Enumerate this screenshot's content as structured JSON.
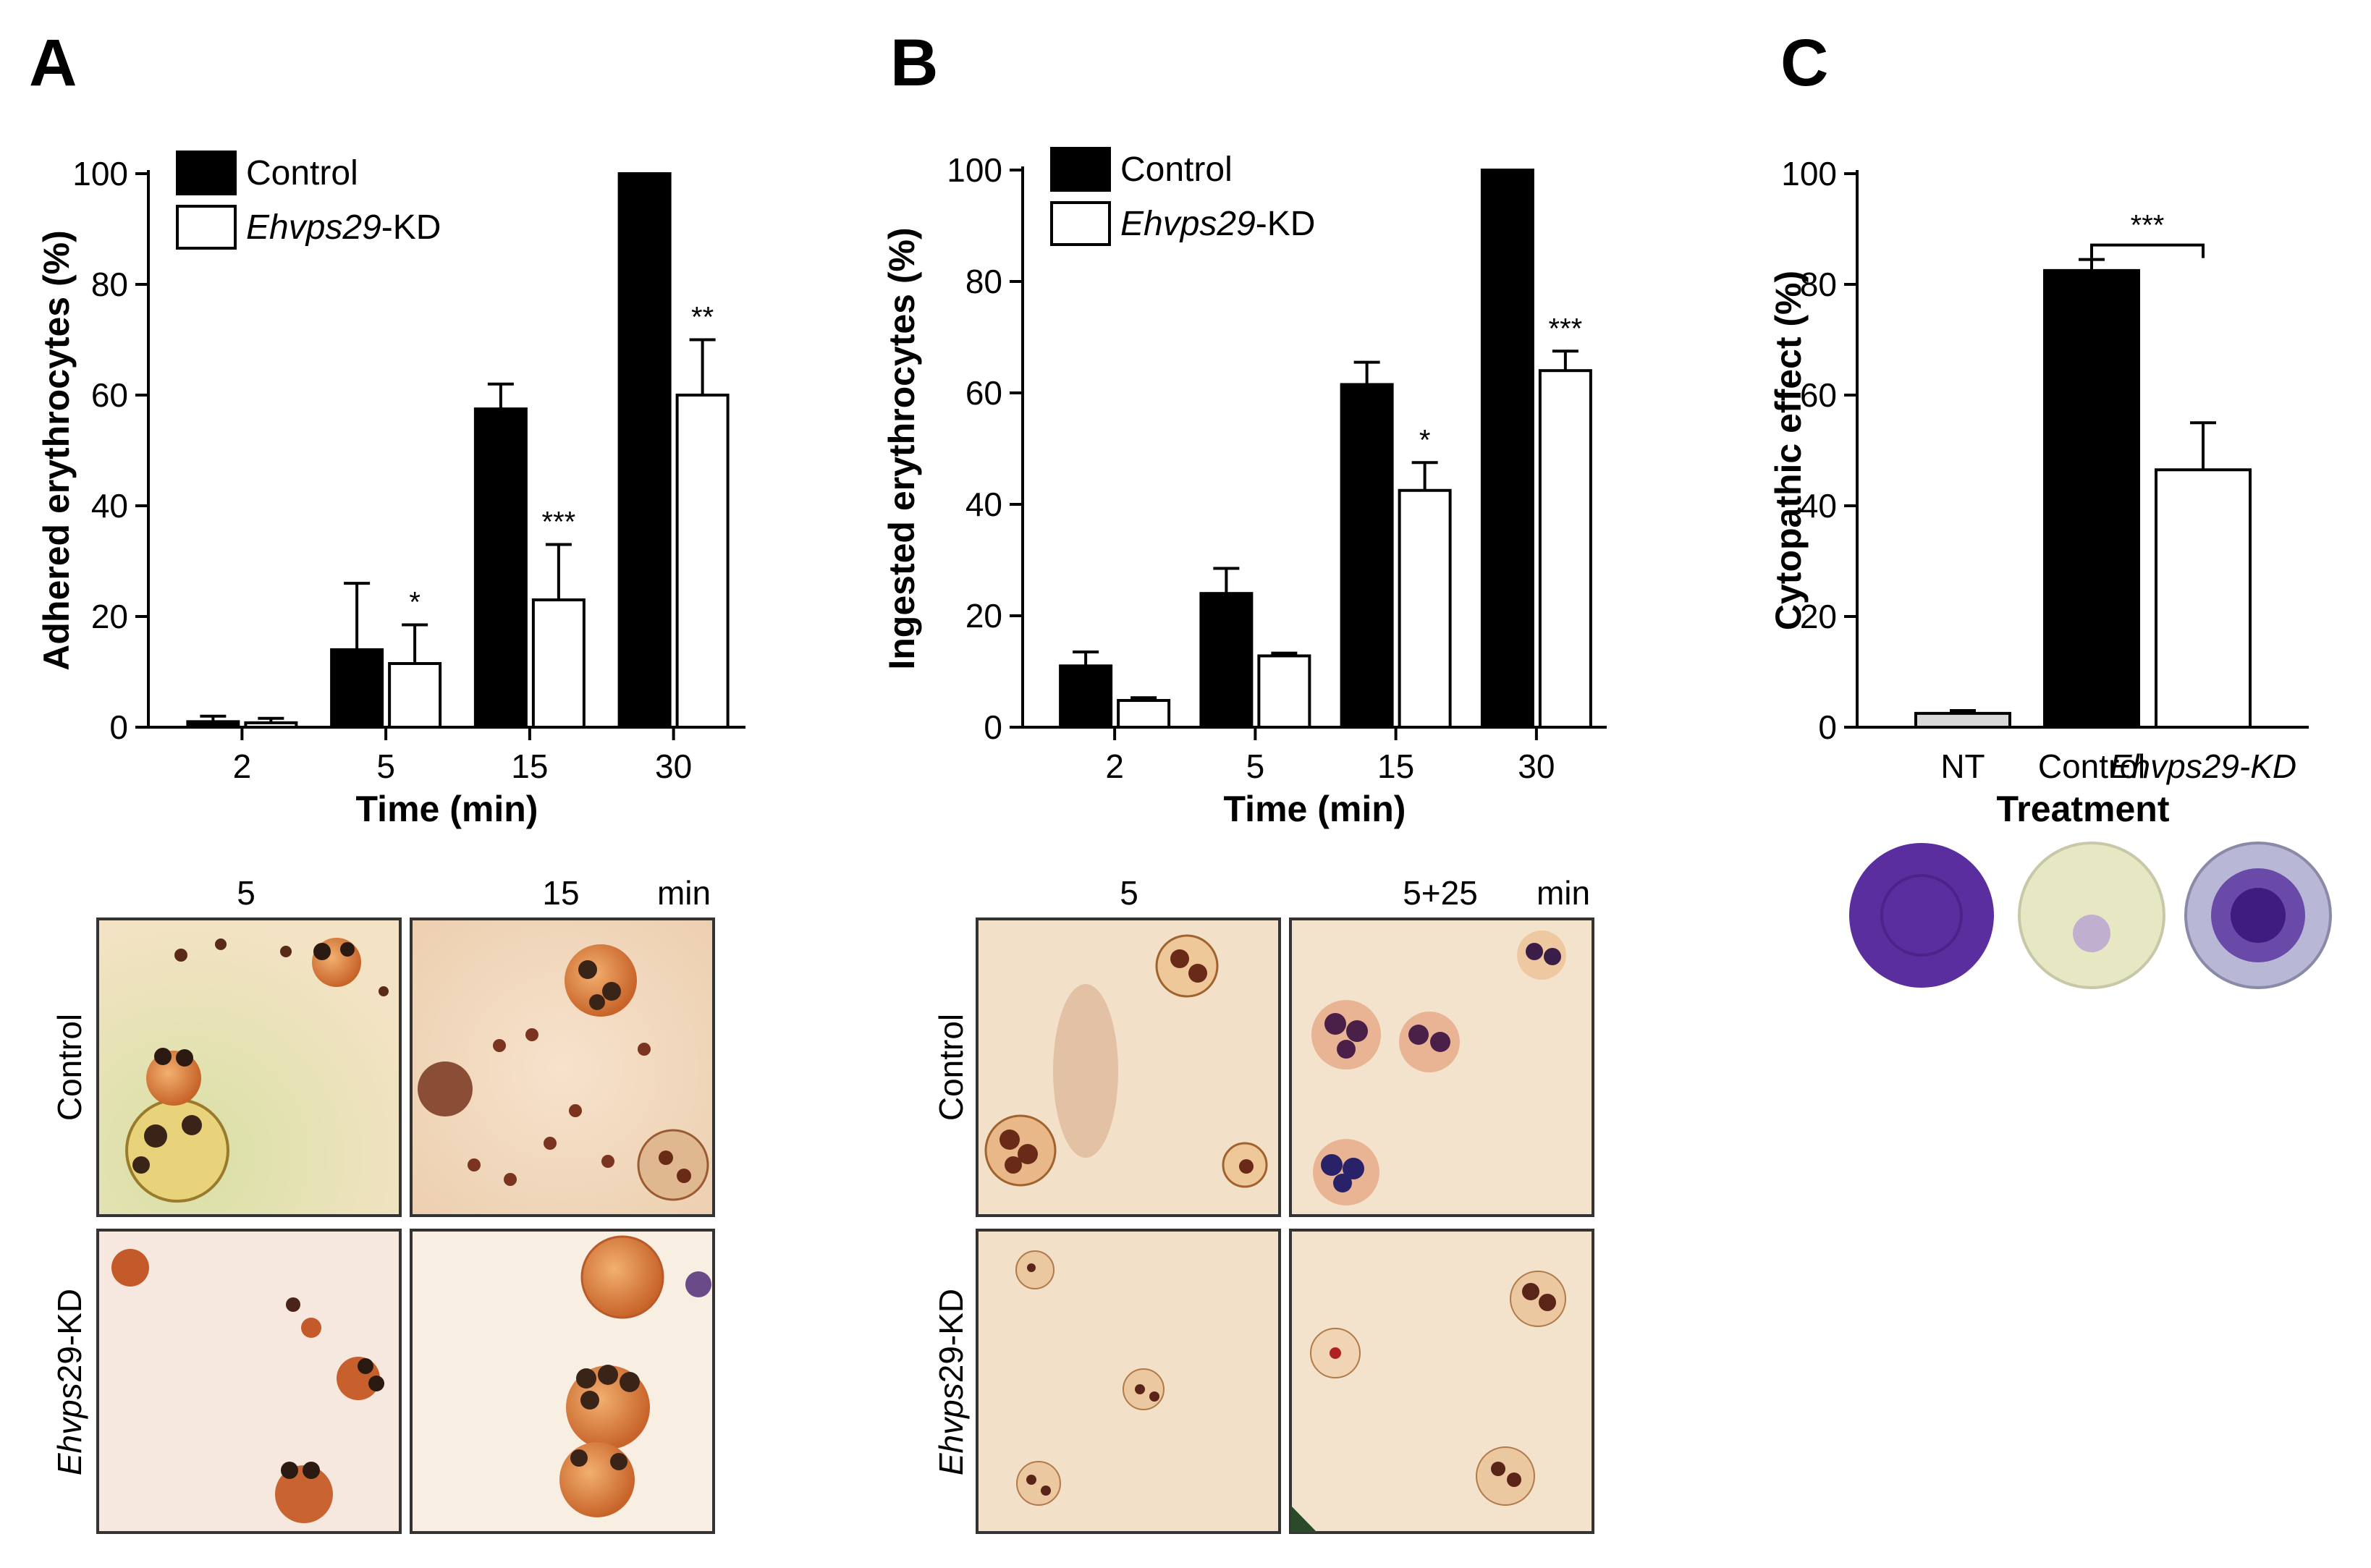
{
  "panels": {
    "A": "A",
    "B": "B",
    "C": "C"
  },
  "chart_data": [
    {
      "id": "A",
      "type": "bar",
      "categories": [
        "2",
        "5",
        "15",
        "30"
      ],
      "xlabel": "Time (min)",
      "ylabel": "Adhered erythrocytes (%)",
      "ylim": [
        0,
        100
      ],
      "yticks": [
        "0",
        "20",
        "40",
        "60",
        "80",
        "100"
      ],
      "legend": "top-left",
      "series": [
        {
          "name": "Control",
          "color": "#000000",
          "values": [
            1,
            14,
            57.5,
            100
          ],
          "errors": [
            1,
            12,
            4.5,
            0
          ]
        },
        {
          "name_prefix": "Ehvps29",
          "name_suffix": "-KD",
          "color": "#ffffff",
          "values": [
            0.8,
            11.5,
            23,
            60
          ],
          "errors": [
            0.8,
            7,
            10,
            10
          ]
        }
      ],
      "significance": [
        "",
        "*",
        "***",
        "**"
      ]
    },
    {
      "id": "B",
      "type": "bar",
      "categories": [
        "2",
        "5",
        "15",
        "30"
      ],
      "xlabel": "Time (min)",
      "ylabel": "Ingested erythrocytes (%)",
      "ylim": [
        0,
        100
      ],
      "yticks": [
        "0",
        "20",
        "40",
        "60",
        "80",
        "100"
      ],
      "legend": "top-left",
      "series": [
        {
          "name": "Control",
          "color": "#000000",
          "values": [
            11,
            24,
            61.5,
            100
          ],
          "errors": [
            2.5,
            4.5,
            4,
            0
          ]
        },
        {
          "name_prefix": "Ehvps29",
          "name_suffix": "-KD",
          "color": "#ffffff",
          "values": [
            4.8,
            12.8,
            42.5,
            64
          ],
          "errors": [
            0.5,
            0.5,
            5,
            3.5
          ]
        }
      ],
      "significance": [
        "",
        "",
        "*",
        "***"
      ]
    },
    {
      "id": "C",
      "type": "bar",
      "categories": [
        "NT",
        "Control",
        "Ehvps29-KD"
      ],
      "xlabel": "Treatment",
      "ylabel": "Cytopathic effect (%)",
      "ylim": [
        0,
        100
      ],
      "yticks": [
        "0",
        "20",
        "40",
        "60",
        "80",
        "100"
      ],
      "values": [
        2.5,
        82.5,
        46.5
      ],
      "errors": [
        0.5,
        2,
        8.5
      ],
      "colors": [
        "#d9d9d9",
        "#000000",
        "#ffffff"
      ],
      "significance": "***"
    }
  ],
  "micrographs": {
    "A": {
      "col1": "5",
      "col2": "15",
      "unit": "min",
      "row1": "Control",
      "row2_prefix": "Ehvps",
      "row2_suffix": "29-KD"
    },
    "B": {
      "col1": "5",
      "col2": "5+25",
      "unit": "min",
      "row1": "Control",
      "row2_prefix": "Ehvps",
      "row2_suffix": "29-KD"
    }
  },
  "plate_colors": {
    "NT": "#5b2ea0",
    "Control": "#e6e8c4",
    "Ehvps29-KD": "#b8b8d6"
  }
}
